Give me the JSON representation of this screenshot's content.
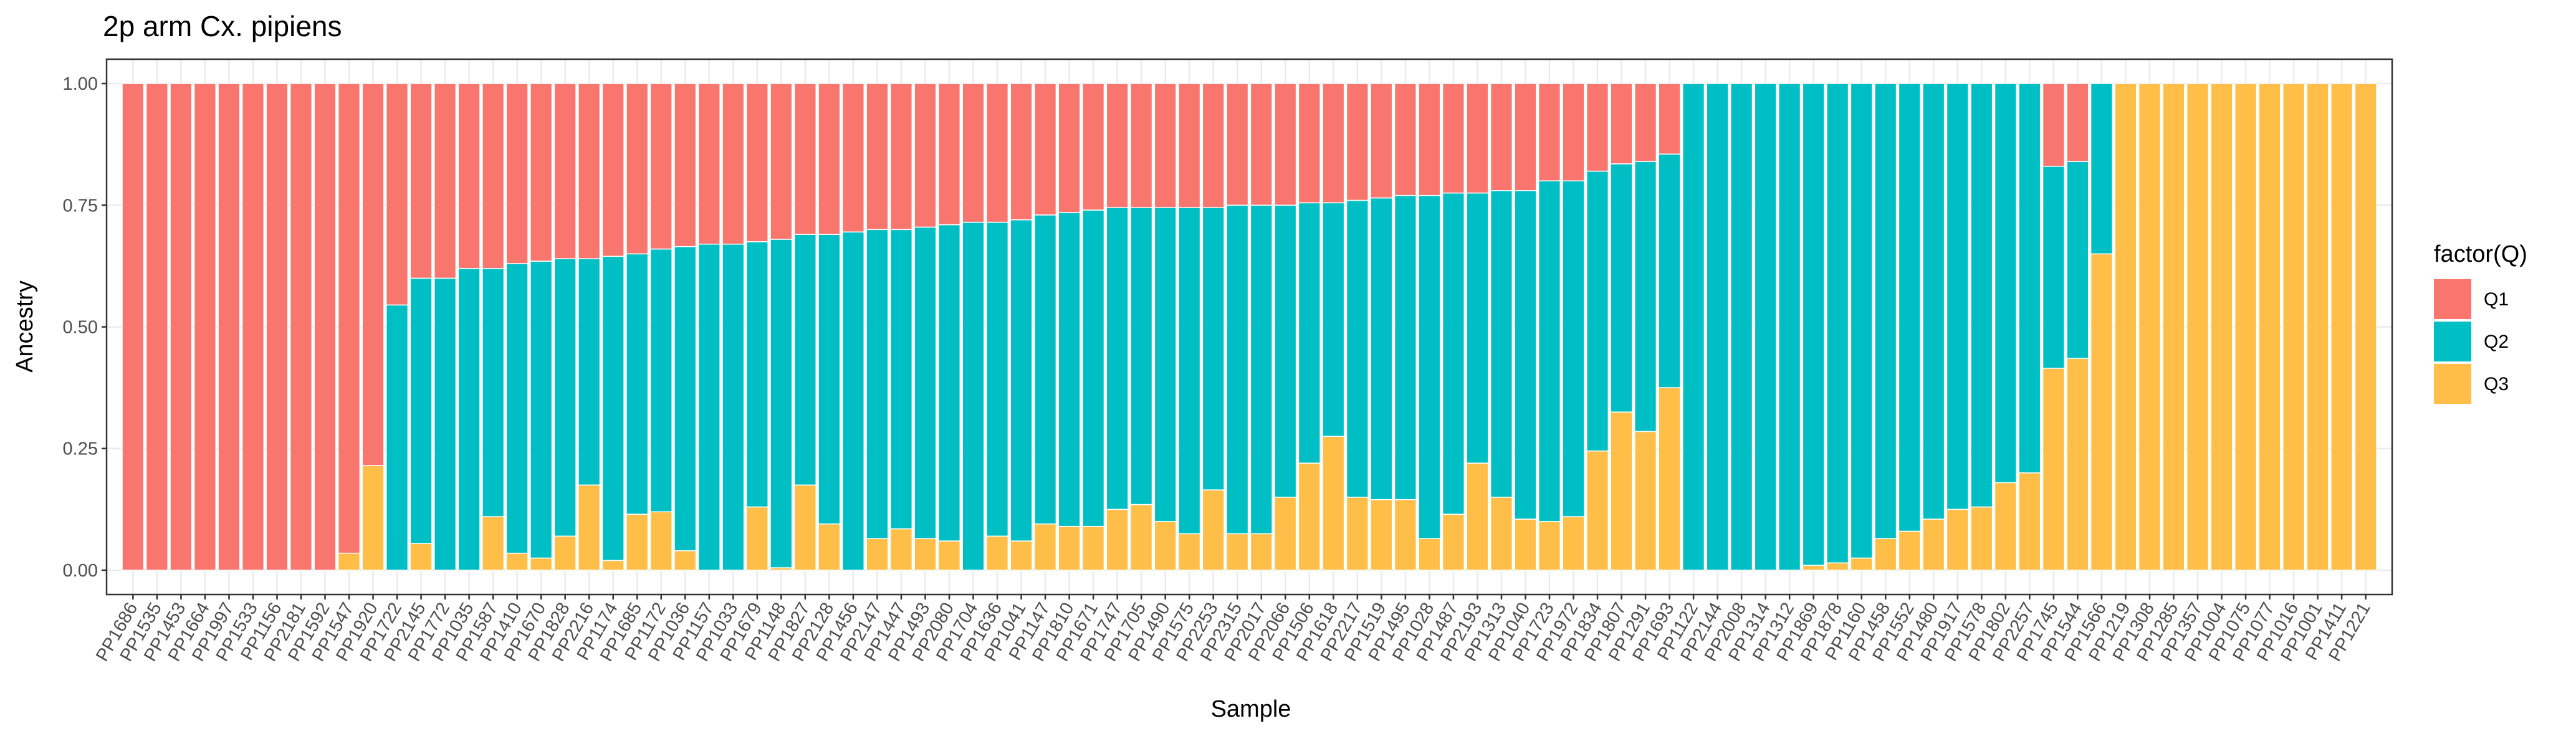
{
  "chart_data": {
    "type": "stacked-bar",
    "title": "2p arm Cx. pipiens",
    "x_label": "Sample",
    "y_label": "Ancestry",
    "legend_title": "factor(Q)",
    "legend_position": "right",
    "grid": true,
    "categories": [
      "PP1686",
      "PP1535",
      "PP1453",
      "PP1664",
      "PP1997",
      "PP1533",
      "PP1156",
      "PP2181",
      "PP1592",
      "PP1547",
      "PP1920",
      "PP1722",
      "PP2145",
      "PP1772",
      "PP1035",
      "PP1587",
      "PP1410",
      "PP1670",
      "PP1828",
      "PP2216",
      "PP1174",
      "PP1685",
      "PP1172",
      "PP1036",
      "PP1157",
      "PP1033",
      "PP1679",
      "PP1148",
      "PP1827",
      "PP2128",
      "PP1456",
      "PP2147",
      "PP1447",
      "PP1493",
      "PP2080",
      "PP1704",
      "PP1636",
      "PP1041",
      "PP1147",
      "PP1810",
      "PP1671",
      "PP1747",
      "PP1705",
      "PP1490",
      "PP1575",
      "PP2253",
      "PP2315",
      "PP2017",
      "PP2066",
      "PP1506",
      "PP1618",
      "PP2217",
      "PP1519",
      "PP1495",
      "PP1028",
      "PP1487",
      "PP2193",
      "PP1313",
      "PP1040",
      "PP1723",
      "PP1972",
      "PP1834",
      "PP1807",
      "PP1291",
      "PP1693",
      "PP1122",
      "PP2144",
      "PP2008",
      "PP1314",
      "PP1312",
      "PP1869",
      "PP1878",
      "PP1160",
      "PP1458",
      "PP1552",
      "PP1480",
      "PP1917",
      "PP1578",
      "PP1802",
      "PP2257",
      "PP1745",
      "PP1544",
      "PP1566",
      "PP1219",
      "PP1308",
      "PP1285",
      "PP1357",
      "PP1004",
      "PP1075",
      "PP1077",
      "PP1016",
      "PP1001",
      "PP1411",
      "PP1221"
    ],
    "series": [
      {
        "name": "Q1",
        "color": "#f8766d",
        "values": [
          1,
          1,
          1,
          1,
          1,
          1,
          1,
          1,
          1,
          0.965,
          0.785,
          0.455,
          0.4,
          0.4,
          0.38,
          0.38,
          0.37,
          0.365,
          0.36,
          0.36,
          0.355,
          0.35,
          0.34,
          0.335,
          0.33,
          0.33,
          0.325,
          0.32,
          0.31,
          0.31,
          0.305,
          0.3,
          0.3,
          0.295,
          0.29,
          0.285,
          0.285,
          0.28,
          0.27,
          0.265,
          0.26,
          0.255,
          0.255,
          0.255,
          0.255,
          0.255,
          0.25,
          0.25,
          0.25,
          0.245,
          0.245,
          0.24,
          0.235,
          0.23,
          0.23,
          0.225,
          0.225,
          0.22,
          0.22,
          0.2,
          0.2,
          0.18,
          0.165,
          0.16,
          0.145,
          0,
          0,
          0,
          0,
          0,
          0,
          0,
          0,
          0,
          0,
          0,
          0,
          0,
          0,
          0,
          0.17,
          0.16,
          0,
          0,
          0,
          0,
          0,
          0,
          0,
          0,
          0,
          0,
          0,
          0
        ]
      },
      {
        "name": "Q2",
        "color": "#00bfc4",
        "values": [
          0,
          0,
          0,
          0,
          0,
          0,
          0,
          0,
          0,
          0,
          0,
          0.545,
          0.545,
          0.6,
          0.62,
          0.51,
          0.595,
          0.61,
          0.57,
          0.465,
          0.625,
          0.535,
          0.54,
          0.625,
          0.67,
          0.67,
          0.545,
          0.675,
          0.515,
          0.595,
          0.695,
          0.635,
          0.615,
          0.64,
          0.65,
          0.715,
          0.645,
          0.66,
          0.635,
          0.645,
          0.65,
          0.62,
          0.61,
          0.645,
          0.67,
          0.58,
          0.675,
          0.675,
          0.6,
          0.535,
          0.48,
          0.61,
          0.62,
          0.625,
          0.705,
          0.66,
          0.555,
          0.63,
          0.675,
          0.7,
          0.69,
          0.575,
          0.51,
          0.555,
          0.48,
          1,
          1,
          1,
          1,
          1,
          0.99,
          0.985,
          0.975,
          0.935,
          0.92,
          0.895,
          0.875,
          0.87,
          0.82,
          0.8,
          0.415,
          0.405,
          0.35,
          0,
          0,
          0,
          0,
          0,
          0,
          0,
          0,
          0,
          0,
          0
        ]
      },
      {
        "name": "Q3",
        "color": "#ffbe48",
        "values": [
          0,
          0,
          0,
          0,
          0,
          0,
          0,
          0,
          0,
          0.035,
          0.215,
          0,
          0.055,
          0,
          0,
          0.11,
          0.035,
          0.025,
          0.07,
          0.175,
          0.02,
          0.115,
          0.12,
          0.04,
          0,
          0,
          0.13,
          0.005,
          0.175,
          0.095,
          0,
          0.065,
          0.085,
          0.065,
          0.06,
          0,
          0.07,
          0.06,
          0.095,
          0.09,
          0.09,
          0.125,
          0.135,
          0.1,
          0.075,
          0.165,
          0.075,
          0.075,
          0.15,
          0.22,
          0.275,
          0.15,
          0.145,
          0.145,
          0.065,
          0.115,
          0.22,
          0.15,
          0.105,
          0.1,
          0.11,
          0.245,
          0.325,
          0.285,
          0.375,
          0,
          0,
          0,
          0,
          0,
          0.01,
          0.015,
          0.025,
          0.065,
          0.08,
          0.105,
          0.125,
          0.13,
          0.18,
          0.2,
          0.415,
          0.435,
          0.65,
          1,
          1,
          1,
          1,
          1,
          1,
          1,
          1,
          1,
          1,
          1
        ]
      }
    ],
    "ylim": [
      -0.05,
      1.05
    ],
    "yticks": [
      {
        "value": 0,
        "label": "0.00"
      },
      {
        "value": 0.25,
        "label": "0.25"
      },
      {
        "value": 0.5,
        "label": "0.50"
      },
      {
        "value": 0.75,
        "label": "0.75"
      },
      {
        "value": 1,
        "label": "1.00"
      }
    ]
  }
}
